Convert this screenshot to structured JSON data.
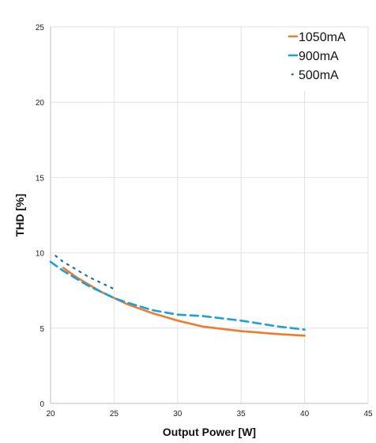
{
  "chart_data": {
    "type": "line",
    "title": "",
    "xlabel": "Output Power [W]",
    "ylabel": "THD [%]",
    "xlim": [
      20,
      45
    ],
    "ylim": [
      0,
      25
    ],
    "xticks": [
      20,
      25,
      30,
      35,
      40,
      45
    ],
    "yticks": [
      0,
      5,
      10,
      15,
      20,
      25
    ],
    "grid": true,
    "legend_position": "top-right",
    "series": [
      {
        "name": "1050mA",
        "color": "#F07A2E",
        "style": "solid",
        "x": [
          21,
          22,
          23,
          24,
          25,
          26,
          28,
          30,
          32,
          35,
          38,
          40
        ],
        "y": [
          9.0,
          8.4,
          7.9,
          7.4,
          7.0,
          6.6,
          6.0,
          5.5,
          5.1,
          4.8,
          4.6,
          4.5
        ]
      },
      {
        "name": "900mA",
        "color": "#1AA0DC",
        "style": "dashed",
        "x": [
          20,
          21,
          22,
          23,
          24,
          25,
          26,
          28,
          30,
          32,
          35,
          38,
          40
        ],
        "y": [
          9.4,
          8.8,
          8.3,
          7.8,
          7.4,
          7.0,
          6.7,
          6.2,
          5.9,
          5.8,
          5.5,
          5.1,
          4.9
        ]
      },
      {
        "name": "500mA",
        "color": "#1A6E9E",
        "style": "dotted",
        "x": [
          20.4,
          21,
          22,
          23,
          24,
          25
        ],
        "y": [
          9.8,
          9.4,
          8.9,
          8.4,
          8.0,
          7.6
        ]
      }
    ]
  }
}
